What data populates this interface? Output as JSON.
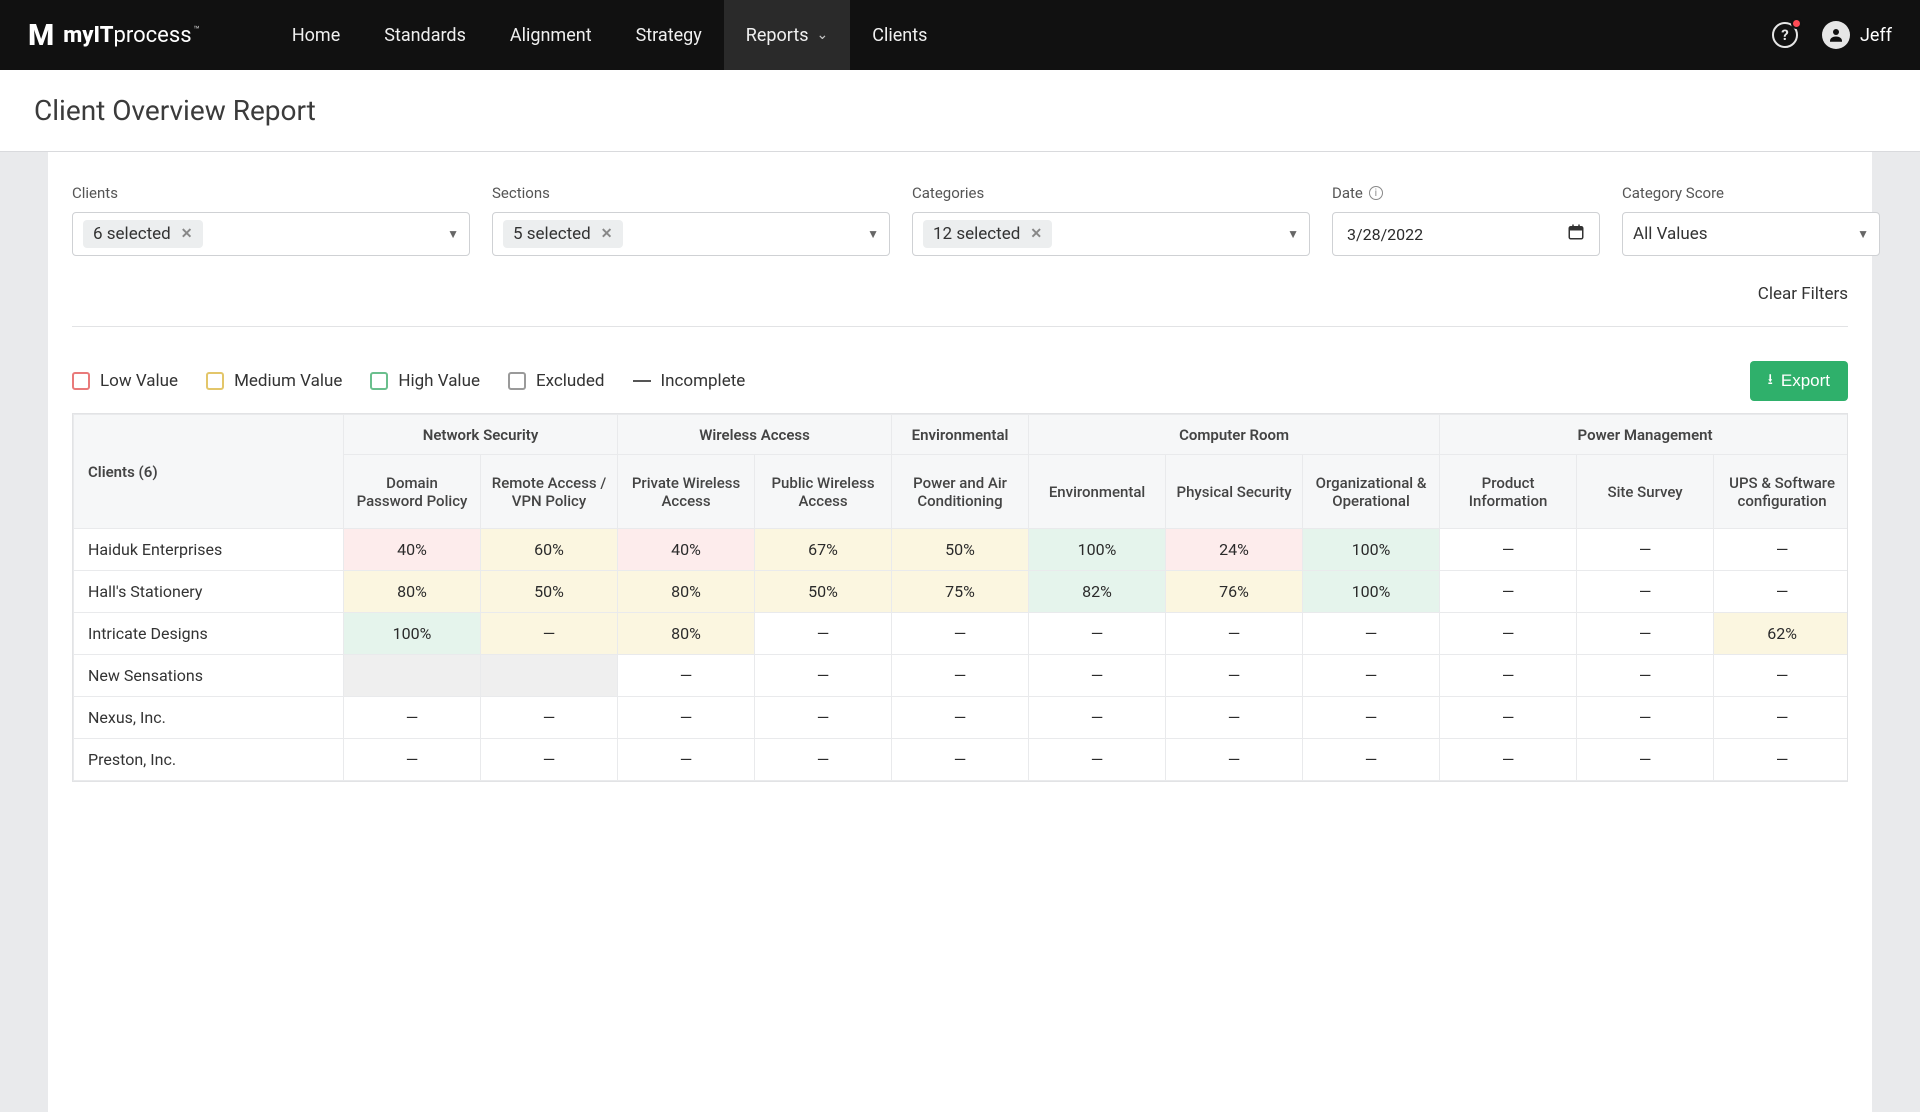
{
  "brand": {
    "mark": "M",
    "name_bold": "myIT",
    "name_light": "process"
  },
  "nav": {
    "items": [
      {
        "label": "Home"
      },
      {
        "label": "Standards"
      },
      {
        "label": "Alignment"
      },
      {
        "label": "Strategy"
      },
      {
        "label": "Reports",
        "active": true,
        "dropdown": true
      },
      {
        "label": "Clients"
      }
    ]
  },
  "user": {
    "name": "Jeff"
  },
  "page_title": "Client Overview Report",
  "filters": {
    "clients": {
      "label": "Clients",
      "chip": "6 selected"
    },
    "sections": {
      "label": "Sections",
      "chip": "5 selected"
    },
    "categories": {
      "label": "Categories",
      "chip": "12 selected"
    },
    "date": {
      "label": "Date",
      "value": "3/28/2022"
    },
    "score": {
      "label": "Category Score",
      "value": "All Values"
    },
    "clear": "Clear Filters"
  },
  "legend": {
    "low": "Low Value",
    "med": "Medium Value",
    "high": "High Value",
    "excl": "Excluded",
    "inc": "Incomplete"
  },
  "export_label": "Export",
  "table": {
    "clients_header": "Clients (6)",
    "groups": [
      {
        "label": "Network Security",
        "cols": [
          "Domain Password Policy",
          "Remote Access / VPN Policy"
        ]
      },
      {
        "label": "Wireless Access",
        "cols": [
          "Private Wireless Access",
          "Public Wireless Access"
        ]
      },
      {
        "label": "Environmental",
        "cols": [
          "Power and Air Conditioning"
        ]
      },
      {
        "label": "Computer Room",
        "cols": [
          "Environmental",
          "Physical Security",
          "Organizational & Operational"
        ]
      },
      {
        "label": "Power Management",
        "cols": [
          "Product Information",
          "Site Survey",
          "UPS & Software configuration"
        ]
      }
    ],
    "rows": [
      {
        "name": "Haiduk Enterprises",
        "cells": [
          {
            "v": "40%",
            "c": "low"
          },
          {
            "v": "60%",
            "c": "med"
          },
          {
            "v": "40%",
            "c": "low"
          },
          {
            "v": "67%",
            "c": "med"
          },
          {
            "v": "50%",
            "c": "med"
          },
          {
            "v": "100%",
            "c": "high"
          },
          {
            "v": "24%",
            "c": "low"
          },
          {
            "v": "100%",
            "c": "high"
          },
          {
            "v": "—"
          },
          {
            "v": "—"
          },
          {
            "v": "—"
          }
        ]
      },
      {
        "name": "Hall's Stationery",
        "cells": [
          {
            "v": "80%",
            "c": "med"
          },
          {
            "v": "50%",
            "c": "med"
          },
          {
            "v": "80%",
            "c": "med"
          },
          {
            "v": "50%",
            "c": "med"
          },
          {
            "v": "75%",
            "c": "med"
          },
          {
            "v": "82%",
            "c": "high"
          },
          {
            "v": "76%",
            "c": "med"
          },
          {
            "v": "100%",
            "c": "high"
          },
          {
            "v": "—"
          },
          {
            "v": "—"
          },
          {
            "v": "—"
          }
        ]
      },
      {
        "name": "Intricate Designs",
        "cells": [
          {
            "v": "100%",
            "c": "high"
          },
          {
            "v": "—",
            "c": "med"
          },
          {
            "v": "80%",
            "c": "med"
          },
          {
            "v": "—"
          },
          {
            "v": "—"
          },
          {
            "v": "—"
          },
          {
            "v": "—"
          },
          {
            "v": "—"
          },
          {
            "v": "—"
          },
          {
            "v": "—"
          },
          {
            "v": "62%",
            "c": "med"
          }
        ]
      },
      {
        "name": "New Sensations",
        "cells": [
          {
            "v": "",
            "c": "grey"
          },
          {
            "v": "",
            "c": "grey"
          },
          {
            "v": "—"
          },
          {
            "v": "—"
          },
          {
            "v": "—"
          },
          {
            "v": "—"
          },
          {
            "v": "—"
          },
          {
            "v": "—"
          },
          {
            "v": "—"
          },
          {
            "v": "—"
          },
          {
            "v": "—"
          }
        ]
      },
      {
        "name": "Nexus, Inc.",
        "cells": [
          {
            "v": "—"
          },
          {
            "v": "—"
          },
          {
            "v": "—"
          },
          {
            "v": "—"
          },
          {
            "v": "—"
          },
          {
            "v": "—"
          },
          {
            "v": "—"
          },
          {
            "v": "—"
          },
          {
            "v": "—"
          },
          {
            "v": "—"
          },
          {
            "v": "—"
          }
        ]
      },
      {
        "name": "Preston, Inc.",
        "cells": [
          {
            "v": "—"
          },
          {
            "v": "—"
          },
          {
            "v": "—"
          },
          {
            "v": "—"
          },
          {
            "v": "—"
          },
          {
            "v": "—"
          },
          {
            "v": "—"
          },
          {
            "v": "—"
          },
          {
            "v": "—"
          },
          {
            "v": "—"
          },
          {
            "v": "—"
          }
        ]
      }
    ]
  },
  "colors": {
    "low_bg": "#fdecec",
    "med_bg": "#fbf6e0",
    "high_bg": "#e5f4ec",
    "grey_bg": "#efefef",
    "export": "#2fb06b"
  }
}
